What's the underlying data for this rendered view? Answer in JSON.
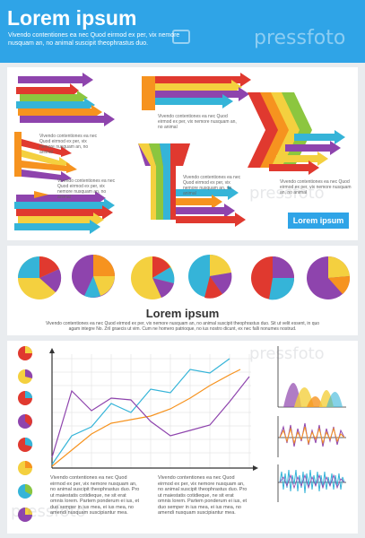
{
  "header": {
    "title": "Lorem ipsum",
    "text": "Vivendo contentiones ea nec Quod eirmod ex per, vix nemore nusquam an, no animal suscipit theophrastus duo.",
    "watermark": "pressfoto"
  },
  "panel1": {
    "text_top_right": "Vivendo contentiones ea nec Quod eirmod ex per, vix nemore nusquam an, no animal",
    "text_left": "Vivendo contentiones ea nec Quod eirmod ex per, vix nemore nusquam an, no animal",
    "text_center": "Vivendo contentiones ea nec Quod eirmod ex per, vix nemore nusquam an, no animal",
    "text_funnel": "Vivendo contentiones ea nec Quod eirmod ex per, vix nemore nusquam an, no animal",
    "text_right": "Vivendo contentiones ea nec Quod eirmod ex per, vix nemore nusquam an, no animal",
    "button_label": "Lorem ipsum"
  },
  "panel2": {
    "title": "Lorem ipsum",
    "text": "Vivendo contentiones ea nec Quod eirmod ex per, vix nemore nusquam an, no animal suscipit theophrastus duo. Sit ut velit essent, in quo agam integre No. Zril graecis ut vim. Cum ne homero patrioque, no ius nostro dicunt, ex nec falli nonumes nostrud."
  },
  "panel3": {
    "text_left": "Vivendo contentiones ea nec Quod eirmod ex per, vix nemore nusquam an, no animal suscipit theophrastus duo. Pro ut maiestatis cotidieque, ne sit erat omnis lorem. Partem ponderum ei ius, et duo semper in ius mea, ei ius mea, no amendi nusquam suscipiantur mea.",
    "text_right": "Vivendo contentiones ea nec Quod eirmod ex per, vix nemore nusquam an, no animal suscipit theophrastus duo. Pro ut maiestatis cotidieque, ne sit erat omnis lorem. Partem ponderum ei ius, et duo semper in ius mea, ei ius mea, no amendi nusquam suscipiantur mea."
  },
  "colors": {
    "blue": "#2fa4e7",
    "red": "#e0392f",
    "orange": "#f6931f",
    "yellow": "#f4d03f",
    "green": "#8cc63f",
    "purple": "#8e44ad",
    "cyan": "#35b4d8"
  }
}
